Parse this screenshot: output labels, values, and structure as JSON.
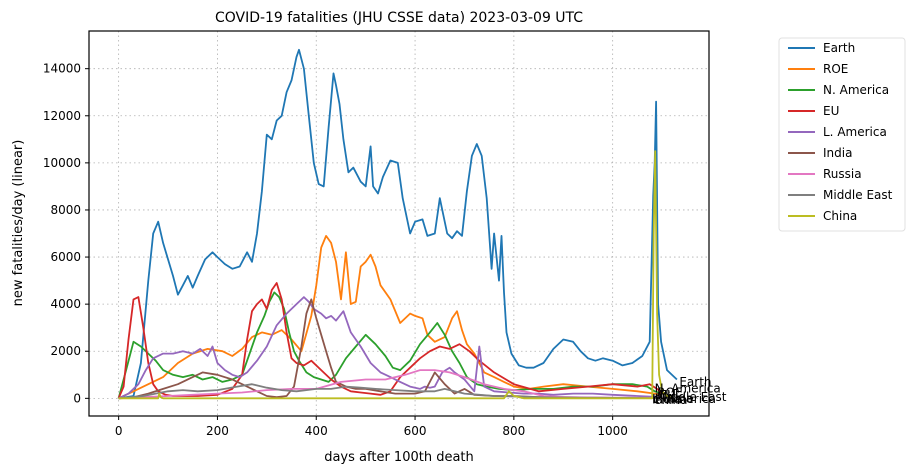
{
  "chart_data": {
    "type": "line",
    "title": "COVID-19 fatalities (JHU CSSE data) 2023-03-09 UTC",
    "xlabel": "days after 100th death",
    "ylabel": "new fatalities/day (linear)",
    "xlim": [
      -60,
      1195
    ],
    "ylim": [
      -750,
      15600
    ],
    "xticks": [
      0,
      200,
      400,
      600,
      800,
      1000
    ],
    "yticks": [
      0,
      2000,
      4000,
      6000,
      8000,
      10000,
      12000,
      14000
    ],
    "grid": true,
    "legend_position": "outside-right",
    "series": [
      {
        "name": "Earth",
        "color": "#1f77b4",
        "x": [
          0,
          30,
          45,
          60,
          70,
          80,
          90,
          110,
          120,
          130,
          140,
          150,
          160,
          175,
          190,
          200,
          215,
          230,
          245,
          260,
          270,
          280,
          290,
          300,
          310,
          320,
          330,
          340,
          350,
          360,
          365,
          375,
          385,
          395,
          405,
          415,
          425,
          435,
          440,
          447,
          455,
          465,
          475,
          490,
          500,
          510,
          515,
          525,
          535,
          550,
          565,
          575,
          590,
          600,
          615,
          625,
          640,
          650,
          665,
          675,
          685,
          695,
          705,
          715,
          725,
          735,
          745,
          755,
          760,
          770,
          775,
          780,
          785,
          795,
          810,
          825,
          840,
          860,
          880,
          900,
          920,
          935,
          950,
          965,
          980,
          1000,
          1020,
          1040,
          1060,
          1075,
          1082,
          1085,
          1088,
          1092,
          1098,
          1110,
          1130
        ],
        "values": [
          0,
          100,
          1500,
          5000,
          7000,
          7500,
          6600,
          5200,
          4400,
          4800,
          5200,
          4700,
          5200,
          5900,
          6200,
          6000,
          5700,
          5500,
          5600,
          6200,
          5800,
          7000,
          8800,
          11200,
          11000,
          11800,
          12000,
          13000,
          13500,
          14500,
          14800,
          14000,
          12000,
          10000,
          9100,
          9000,
          11500,
          13800,
          13300,
          12500,
          11000,
          9600,
          9800,
          9200,
          9000,
          10700,
          9000,
          8700,
          9400,
          10100,
          10000,
          8500,
          7000,
          7500,
          7600,
          6900,
          7000,
          8500,
          7000,
          6800,
          7100,
          6900,
          8800,
          10300,
          10800,
          10300,
          8500,
          5500,
          7000,
          5000,
          6900,
          4500,
          2800,
          1900,
          1400,
          1300,
          1300,
          1500,
          2100,
          2500,
          2400,
          2000,
          1700,
          1600,
          1700,
          1600,
          1400,
          1500,
          1800,
          2400,
          8600,
          10000,
          12600,
          4000,
          2400,
          1200,
          800
        ]
      },
      {
        "name": "ROE",
        "color": "#ff7f0e",
        "x": [
          0,
          30,
          60,
          90,
          120,
          150,
          180,
          210,
          230,
          250,
          270,
          290,
          310,
          330,
          350,
          370,
          390,
          400,
          410,
          420,
          430,
          440,
          450,
          460,
          470,
          480,
          490,
          500,
          510,
          520,
          530,
          550,
          570,
          590,
          600,
          615,
          625,
          640,
          660,
          675,
          685,
          695,
          705,
          720,
          740,
          760,
          780,
          800,
          830,
          860,
          900,
          950,
          1000,
          1050,
          1085,
          1100
        ],
        "values": [
          0,
          300,
          600,
          900,
          1500,
          1900,
          2100,
          2000,
          1800,
          2100,
          2600,
          2800,
          2700,
          2900,
          2500,
          2000,
          3500,
          4800,
          6400,
          6900,
          6600,
          5800,
          4200,
          6200,
          4000,
          4100,
          5600,
          5800,
          6100,
          5600,
          4800,
          4200,
          3200,
          3600,
          3500,
          3400,
          2700,
          2400,
          2600,
          3400,
          3700,
          2900,
          2300,
          1900,
          1100,
          900,
          700,
          500,
          400,
          500,
          600,
          500,
          400,
          300,
          200,
          150
        ]
      },
      {
        "name": "N. America",
        "color": "#2ca02c",
        "x": [
          0,
          15,
          30,
          45,
          60,
          75,
          90,
          110,
          130,
          150,
          170,
          190,
          210,
          230,
          250,
          265,
          280,
          295,
          305,
          315,
          325,
          335,
          345,
          355,
          365,
          380,
          395,
          410,
          425,
          440,
          460,
          480,
          500,
          520,
          540,
          555,
          570,
          590,
          610,
          630,
          645,
          660,
          675,
          690,
          705,
          725,
          745,
          770,
          800,
          840,
          880,
          920,
          960,
          1000,
          1040,
          1070,
          1085,
          1100
        ],
        "values": [
          0,
          1200,
          2400,
          2200,
          1900,
          1600,
          1200,
          1000,
          900,
          1000,
          800,
          900,
          700,
          800,
          1000,
          1900,
          2800,
          3500,
          4100,
          4500,
          4300,
          3800,
          2800,
          2000,
          1600,
          1100,
          900,
          800,
          700,
          1000,
          1700,
          2200,
          2700,
          2300,
          1800,
          1300,
          1200,
          1600,
          2300,
          2800,
          3200,
          2700,
          2000,
          1500,
          900,
          600,
          500,
          400,
          350,
          400,
          400,
          500,
          500,
          600,
          600,
          500,
          300,
          200
        ]
      },
      {
        "name": "EU",
        "color": "#d62728",
        "x": [
          0,
          10,
          20,
          30,
          40,
          50,
          60,
          70,
          80,
          95,
          110,
          130,
          160,
          200,
          230,
          250,
          260,
          270,
          280,
          290,
          300,
          310,
          320,
          330,
          340,
          350,
          360,
          375,
          390,
          410,
          430,
          450,
          470,
          490,
          510,
          530,
          550,
          570,
          590,
          610,
          630,
          650,
          670,
          690,
          710,
          730,
          760,
          800,
          850,
          900,
          950,
          1000,
          1050,
          1075,
          1090,
          1100
        ],
        "values": [
          0,
          500,
          2500,
          4200,
          4300,
          3000,
          1500,
          600,
          300,
          150,
          100,
          100,
          100,
          150,
          400,
          1000,
          2500,
          3700,
          4000,
          4200,
          3800,
          4600,
          4900,
          4200,
          2800,
          1700,
          1500,
          1400,
          1600,
          1200,
          800,
          500,
          300,
          250,
          200,
          150,
          300,
          900,
          1300,
          1700,
          2000,
          2200,
          2100,
          2300,
          2000,
          1600,
          1100,
          600,
          300,
          400,
          500,
          600,
          500,
          600,
          400,
          200
        ]
      },
      {
        "name": "L. America",
        "color": "#9467bd",
        "x": [
          0,
          20,
          40,
          55,
          70,
          90,
          110,
          130,
          150,
          165,
          180,
          190,
          200,
          215,
          230,
          245,
          260,
          280,
          300,
          320,
          340,
          360,
          375,
          385,
          395,
          410,
          420,
          430,
          440,
          455,
          470,
          490,
          510,
          530,
          550,
          570,
          590,
          610,
          620,
          630,
          640,
          655,
          670,
          680,
          700,
          720,
          730,
          740,
          760,
          790,
          820,
          850,
          880,
          920,
          960,
          1000,
          1050,
          1100
        ],
        "values": [
          0,
          200,
          600,
          1200,
          1700,
          1900,
          1900,
          2000,
          1900,
          2100,
          1800,
          2200,
          1500,
          1200,
          1000,
          900,
          1100,
          1600,
          2200,
          3100,
          3600,
          4000,
          4300,
          4100,
          3800,
          3600,
          3400,
          3500,
          3300,
          3700,
          2800,
          2200,
          1500,
          1100,
          900,
          700,
          500,
          400,
          500,
          450,
          500,
          1100,
          1300,
          1100,
          800,
          300,
          2200,
          500,
          300,
          250,
          200,
          200,
          150,
          200,
          200,
          150,
          100,
          50
        ]
      },
      {
        "name": "India",
        "color": "#8c564b",
        "x": [
          0,
          30,
          60,
          90,
          120,
          150,
          170,
          200,
          230,
          260,
          280,
          300,
          320,
          340,
          355,
          370,
          380,
          390,
          400,
          410,
          420,
          430,
          440,
          450,
          460,
          480,
          500,
          530,
          560,
          600,
          620,
          640,
          660,
          680,
          700,
          720,
          760,
          800,
          850,
          900,
          1000,
          1100
        ],
        "values": [
          0,
          50,
          200,
          400,
          600,
          900,
          1100,
          1000,
          800,
          500,
          300,
          100,
          50,
          100,
          500,
          2200,
          3600,
          4200,
          3400,
          2700,
          2000,
          1300,
          700,
          600,
          500,
          400,
          400,
          300,
          200,
          200,
          300,
          1100,
          600,
          200,
          400,
          150,
          100,
          100,
          50,
          50,
          20,
          10
        ]
      },
      {
        "name": "Russia",
        "color": "#e377c2",
        "x": [
          0,
          50,
          100,
          150,
          200,
          250,
          300,
          350,
          400,
          450,
          500,
          540,
          580,
          610,
          640,
          670,
          700,
          740,
          780,
          820,
          860,
          900,
          1000,
          1100
        ],
        "values": [
          0,
          50,
          100,
          150,
          200,
          250,
          350,
          400,
          400,
          700,
          800,
          800,
          1000,
          1200,
          1200,
          1100,
          900,
          600,
          400,
          300,
          100,
          50,
          30,
          20
        ]
      },
      {
        "name": "Middle East",
        "color": "#7f7f7f",
        "x": [
          0,
          50,
          100,
          130,
          160,
          200,
          240,
          270,
          300,
          330,
          360,
          400,
          430,
          460,
          490,
          520,
          560,
          600,
          640,
          660,
          680,
          700,
          730,
          760,
          800,
          850,
          900,
          1000,
          1100
        ],
        "values": [
          0,
          100,
          300,
          350,
          300,
          350,
          500,
          600,
          450,
          350,
          300,
          400,
          400,
          500,
          450,
          400,
          350,
          300,
          300,
          400,
          300,
          200,
          150,
          100,
          80,
          50,
          30,
          20,
          10
        ]
      },
      {
        "name": "China",
        "color": "#bcbd22",
        "x": [
          0,
          50,
          80,
          82,
          85,
          90,
          200,
          400,
          600,
          780,
          790,
          800,
          820,
          840,
          860,
          1000,
          1080,
          1083,
          1086,
          1090,
          1094,
          1100,
          1110,
          1120
        ],
        "values": [
          0,
          0,
          0,
          200,
          50,
          0,
          0,
          0,
          0,
          0,
          300,
          100,
          0,
          0,
          0,
          0,
          0,
          7000,
          10500,
          3600,
          1000,
          300,
          100,
          0
        ]
      }
    ],
    "end_labels": [
      "Earth",
      "N. America",
      "ROE",
      "EU",
      "Middle East",
      "Russia",
      "L. America",
      "India",
      "China"
    ]
  }
}
